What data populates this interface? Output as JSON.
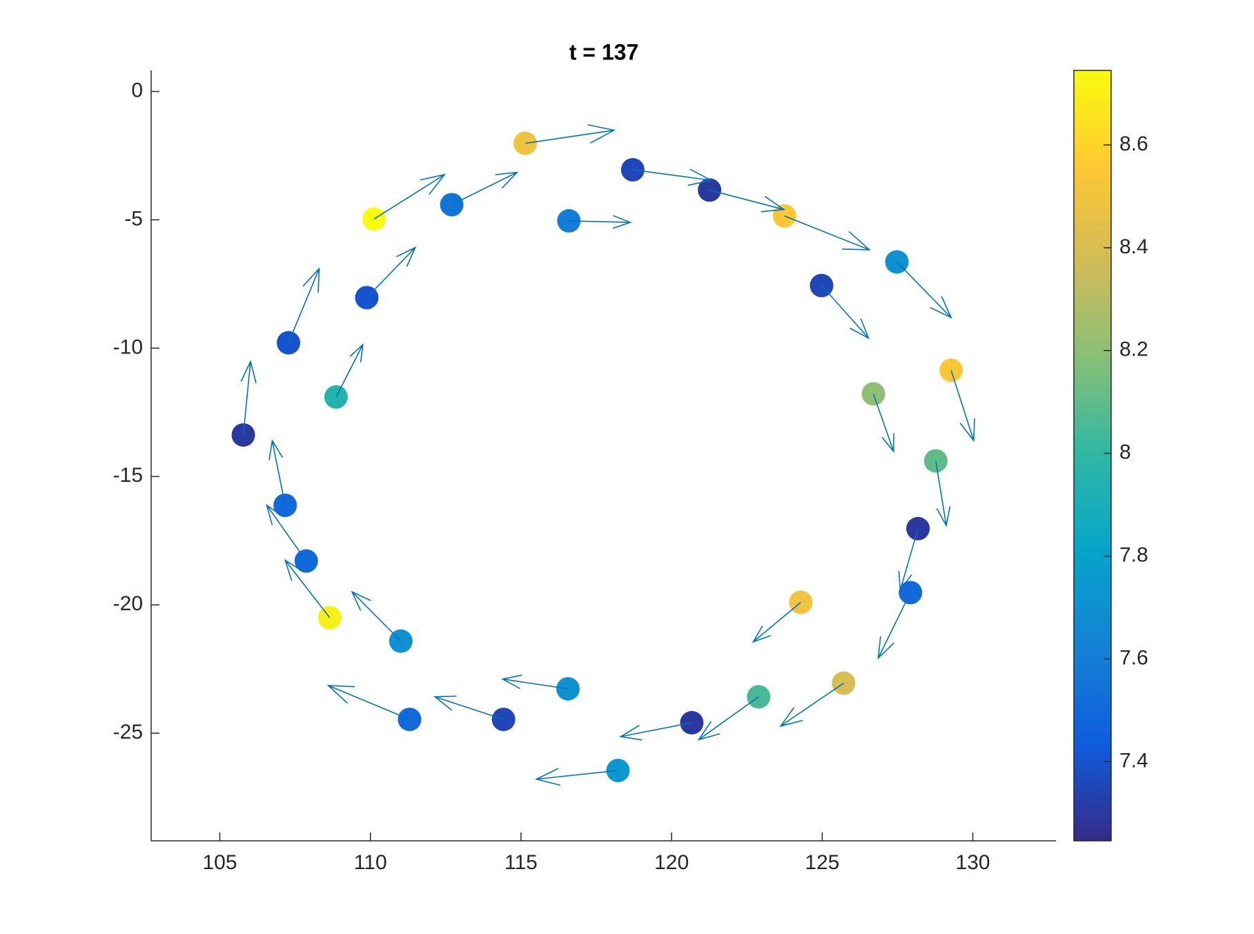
{
  "chart_data": {
    "type": "quiver-scatter",
    "title": "t = 137",
    "x": [
      115.14,
      118.71,
      121.26,
      123.75,
      127.48,
      124.98,
      129.28,
      126.7,
      128.77,
      128.18,
      127.93,
      124.29,
      125.71,
      122.89,
      120.67,
      118.22,
      116.56,
      114.42,
      111.3,
      111.01,
      108.65,
      107.87,
      107.17,
      105.78,
      108.86,
      107.28,
      109.88,
      110.12,
      112.7,
      116.59
    ],
    "y": [
      -2.02,
      -3.05,
      -3.84,
      -4.85,
      -6.64,
      -7.56,
      -10.86,
      -11.78,
      -14.39,
      -17.03,
      -19.52,
      -19.9,
      -23.05,
      -23.58,
      -24.59,
      -26.45,
      -23.27,
      -24.46,
      -24.46,
      -21.41,
      -20.5,
      -18.29,
      -16.12,
      -13.38,
      -11.9,
      -9.79,
      -8.03,
      -4.97,
      -4.41,
      -5.04
    ],
    "c": [
      8.5,
      7.35,
      7.3,
      8.55,
      7.7,
      7.35,
      8.55,
      8.2,
      8.1,
      7.3,
      7.5,
      8.5,
      8.4,
      8.05,
      7.3,
      7.75,
      7.7,
      7.35,
      7.5,
      7.7,
      8.7,
      7.5,
      7.5,
      7.3,
      7.95,
      7.4,
      7.4,
      8.75,
      7.55,
      7.6
    ],
    "u": [
      2.95,
      2.6,
      2.47,
      2.82,
      1.8,
      1.56,
      0.75,
      0.67,
      0.35,
      -0.59,
      -1.07,
      -1.58,
      -2.09,
      -1.99,
      -2.36,
      -2.71,
      -2.17,
      -2.28,
      -2.7,
      -1.62,
      -1.48,
      -1.31,
      -0.43,
      0.24,
      0.89,
      1.02,
      1.61,
      2.34,
      2.17,
      2.04
    ],
    "v": [
      0.51,
      -0.41,
      -0.76,
      -1.32,
      -2.17,
      -2.05,
      -2.74,
      -2.24,
      -2.52,
      -2.4,
      -2.55,
      -1.54,
      -1.67,
      -1.67,
      -0.54,
      -0.34,
      0.38,
      0.88,
      1.32,
      1.92,
      2.24,
      2.17,
      2.52,
      2.86,
      2.04,
      2.89,
      1.95,
      1.73,
      1.26,
      -0.06
    ],
    "arrow_color": "#0072bd",
    "colormap": "parula",
    "xlim": [
      102.72,
      132.76
    ],
    "ylim": [
      -29.19,
      0.82
    ],
    "xticks": [
      105,
      110,
      115,
      120,
      125,
      130
    ],
    "yticks": [
      0,
      -5,
      -10,
      -15,
      -20,
      -25
    ],
    "clim": [
      7.246,
      8.745
    ],
    "cticks": [
      7.4,
      7.6,
      7.8,
      8,
      8.2,
      8.4,
      8.6
    ]
  }
}
